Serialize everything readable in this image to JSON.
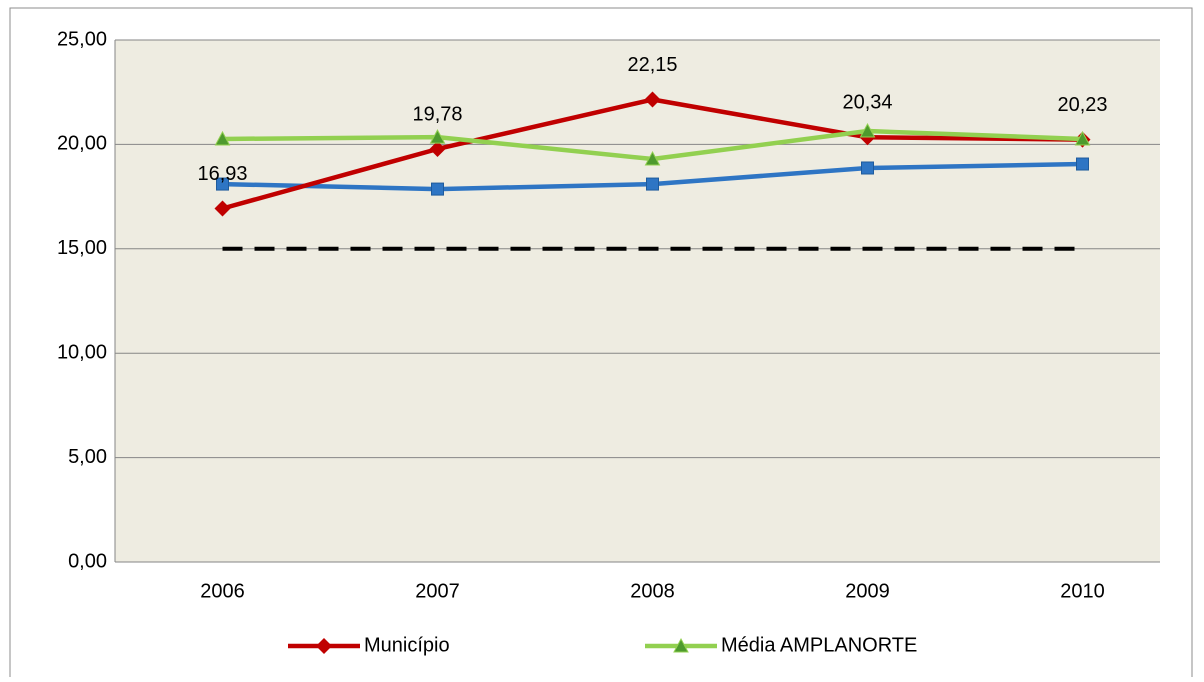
{
  "chart_data": {
    "type": "line",
    "categories": [
      "2006",
      "2007",
      "2008",
      "2009",
      "2010"
    ],
    "series": [
      {
        "color": "#000000",
        "dashed": true,
        "marker": "none",
        "values": [
          15,
          15,
          15,
          15,
          15
        ]
      },
      {
        "color": "#2e75c4",
        "marker": "square",
        "values": [
          18.1,
          17.86,
          18.1,
          18.87,
          19.06
        ]
      },
      {
        "name": "Município",
        "color": "#c00000",
        "marker": "diamond",
        "values": [
          16.93,
          19.78,
          22.15,
          20.34,
          20.23
        ],
        "value_labels": [
          "16,93",
          "19,78",
          "22,15",
          "20,34",
          "20,23"
        ]
      },
      {
        "name": "Média AMPLANORTE",
        "color": "#92d050",
        "marker": "triangle",
        "values": [
          20.26,
          20.35,
          19.3,
          20.64,
          20.26
        ]
      }
    ],
    "ylim": [
      0,
      25
    ],
    "yticks": [
      {
        "value": 0,
        "label": "0,00"
      },
      {
        "value": 5,
        "label": "5,00"
      },
      {
        "value": 10,
        "label": "10,00"
      },
      {
        "value": 15,
        "label": "15,00"
      },
      {
        "value": 20,
        "label": "20,00"
      },
      {
        "value": 25,
        "label": "25,00"
      }
    ],
    "grid": true,
    "plot_background": "#eeece1",
    "legend": "bottom"
  }
}
